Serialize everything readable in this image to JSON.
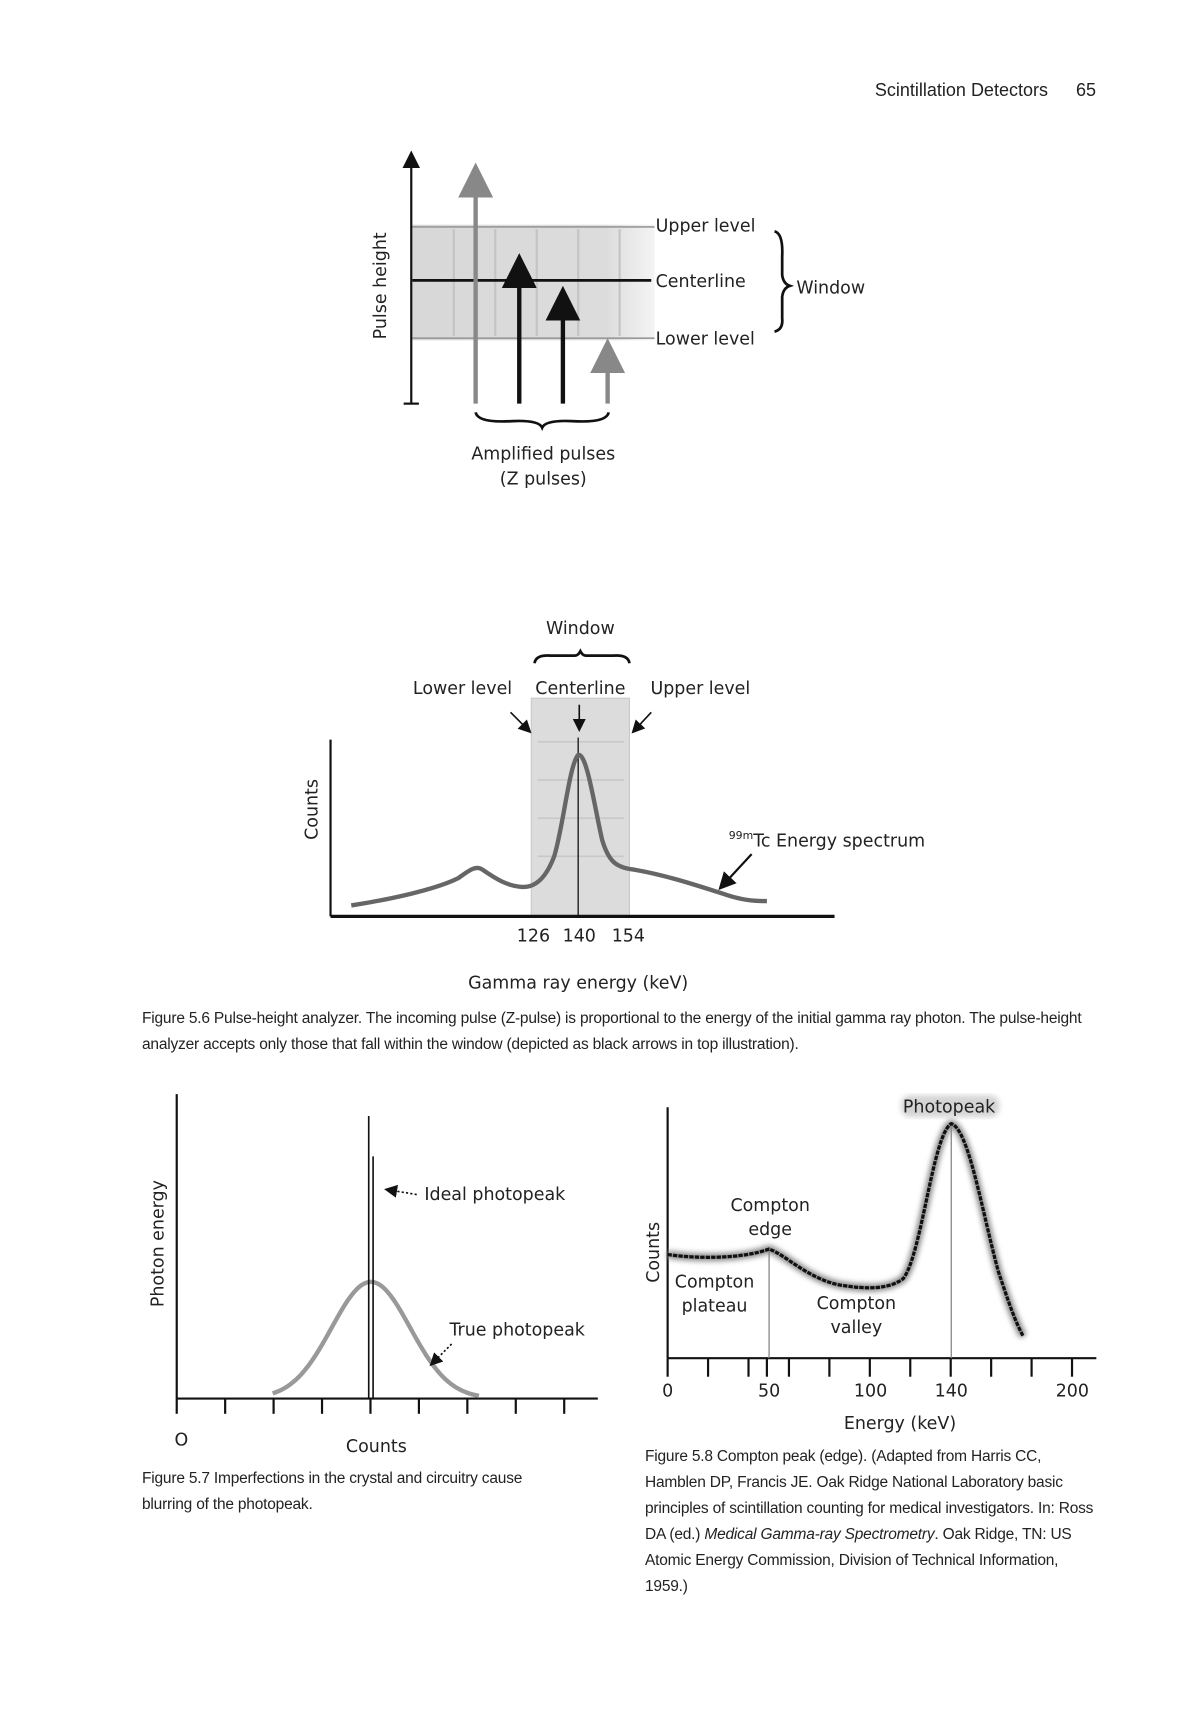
{
  "header": {
    "running_title": "Scintillation Detectors",
    "page_number": "65"
  },
  "figure_5_6_top": {
    "y_axis_label": "Pulse height",
    "upper_level": "Upper level",
    "centerline": "Centerline",
    "lower_level": "Lower level",
    "window": "Window",
    "pulses_label_1": "Amplified pulses",
    "pulses_label_2": "(Z pulses)"
  },
  "figure_5_6_bottom": {
    "window": "Window",
    "lower_level": "Lower level",
    "centerline": "Centerline",
    "upper_level": "Upper level",
    "y_axis_label": "Counts",
    "spectrum_sup": "99m",
    "spectrum_label": "Tc Energy spectrum",
    "ticks": [
      "126",
      "140",
      "154"
    ],
    "x_axis_label": "Gamma ray energy (keV)"
  },
  "captions": {
    "fig_5_6": "Figure 5.6  Pulse-height analyzer. The incoming pulse (Z-pulse) is proportional to the energy of the initial gamma ray photon. The pulse-height analyzer accepts only those that fall within the window (depicted as black arrows in top illustration).",
    "fig_5_7": "Figure 5.7  Imperfections in the crystal and circuitry cause blurring of the photopeak.",
    "fig_5_8_a": "Figure 5.8  Compton peak (edge). (Adapted from Harris CC, Hamblen DP, Francis JE. Oak Ridge National Laboratory basic principles of scintillation counting for medical investigators. In: Ross DA (ed.) ",
    "fig_5_8_italic": "Medical Gamma-ray Spectrometry",
    "fig_5_8_b": ". Oak Ridge, TN: US Atomic Energy Commission, Division of Technical Information, 1959.)"
  },
  "figure_5_7": {
    "y_axis_label": "Photon energy",
    "origin": "O",
    "x_axis_label": "Counts",
    "ideal": "Ideal photopeak",
    "true": "True photopeak"
  },
  "figure_5_8": {
    "photopeak": "Photopeak",
    "compton_edge_1": "Compton",
    "compton_edge_2": "edge",
    "plateau_1": "Compton",
    "plateau_2": "plateau",
    "valley_1": "Compton",
    "valley_2": "valley",
    "y_axis_label": "Counts",
    "ticks": [
      "0",
      "50",
      "100",
      "140",
      "200"
    ],
    "x_axis_label": "Energy (keV)"
  }
}
